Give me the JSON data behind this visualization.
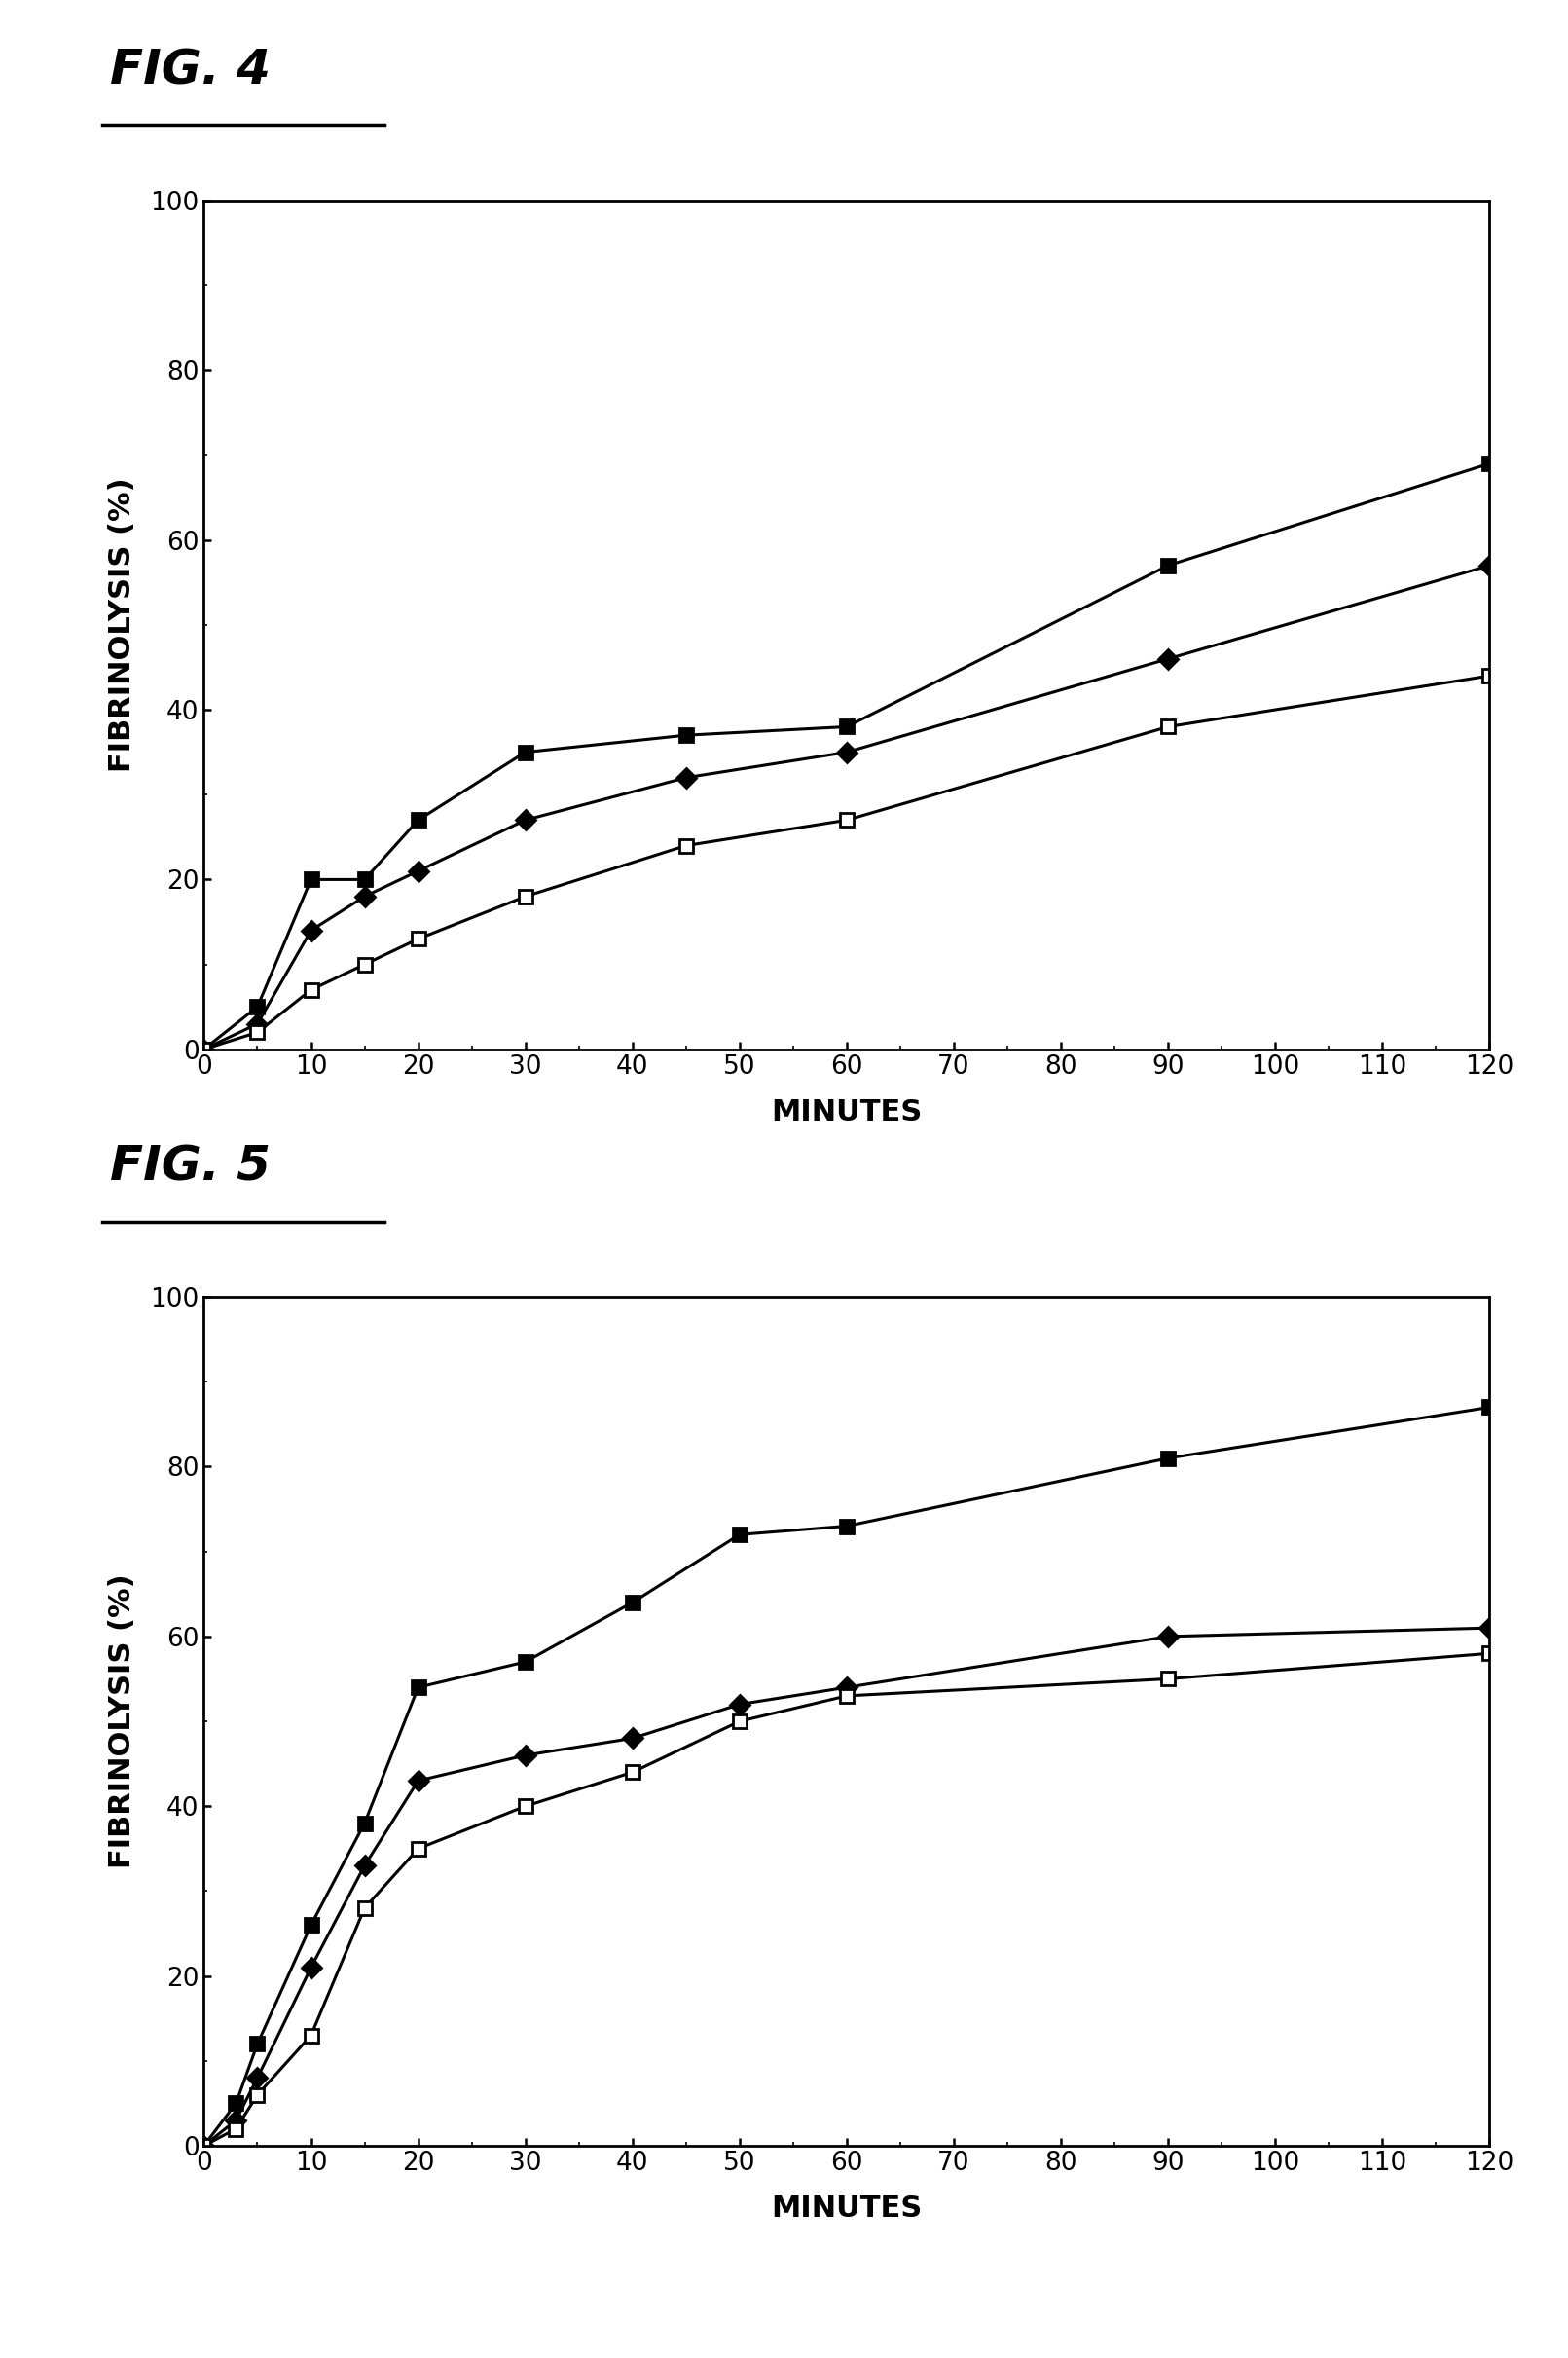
{
  "fig4": {
    "title": "FIG. 4",
    "xlabel": "MINUTES",
    "ylabel": "FIBRINOLYSIS (%)",
    "xlim": [
      0,
      120
    ],
    "ylim": [
      0,
      100
    ],
    "xticks": [
      0,
      10,
      20,
      30,
      40,
      50,
      60,
      70,
      80,
      90,
      100,
      110,
      120
    ],
    "yticks": [
      0,
      20,
      40,
      60,
      80,
      100
    ],
    "series": [
      {
        "x": [
          0,
          5,
          10,
          15,
          20,
          30,
          45,
          60,
          90,
          120
        ],
        "y": [
          0,
          5,
          20,
          20,
          27,
          35,
          37,
          38,
          57,
          69
        ],
        "marker": "s",
        "filled": true
      },
      {
        "x": [
          0,
          5,
          10,
          15,
          20,
          30,
          45,
          60,
          90,
          120
        ],
        "y": [
          0,
          3,
          14,
          18,
          21,
          27,
          32,
          35,
          46,
          57
        ],
        "marker": "D",
        "filled": true
      },
      {
        "x": [
          0,
          5,
          10,
          15,
          20,
          30,
          45,
          60,
          90,
          120
        ],
        "y": [
          0,
          2,
          7,
          10,
          13,
          18,
          24,
          27,
          38,
          44
        ],
        "marker": "s",
        "filled": false
      }
    ]
  },
  "fig5": {
    "title": "FIG. 5",
    "xlabel": "MINUTES",
    "ylabel": "FIBRINOLYSIS (%)",
    "xlim": [
      0,
      120
    ],
    "ylim": [
      0,
      100
    ],
    "xticks": [
      0,
      10,
      20,
      30,
      40,
      50,
      60,
      70,
      80,
      90,
      100,
      110,
      120
    ],
    "yticks": [
      0,
      20,
      40,
      60,
      80,
      100
    ],
    "series": [
      {
        "x": [
          0,
          3,
          5,
          10,
          15,
          20,
          30,
          40,
          50,
          60,
          90,
          120
        ],
        "y": [
          0,
          5,
          12,
          26,
          38,
          54,
          57,
          64,
          72,
          73,
          81,
          87
        ],
        "marker": "s",
        "filled": true
      },
      {
        "x": [
          0,
          3,
          5,
          10,
          15,
          20,
          30,
          40,
          50,
          60,
          90,
          120
        ],
        "y": [
          0,
          3,
          8,
          21,
          33,
          43,
          46,
          48,
          52,
          54,
          60,
          61
        ],
        "marker": "D",
        "filled": true
      },
      {
        "x": [
          0,
          3,
          5,
          10,
          15,
          20,
          30,
          40,
          50,
          60,
          90,
          120
        ],
        "y": [
          0,
          2,
          6,
          13,
          28,
          35,
          40,
          44,
          50,
          53,
          55,
          58
        ],
        "marker": "s",
        "filled": false
      }
    ]
  },
  "line_color": "#000000",
  "marker_size": 10,
  "linewidth": 2.2,
  "title_fontsize": 36,
  "label_fontsize": 22,
  "tick_fontsize": 19,
  "background_color": "#ffffff"
}
